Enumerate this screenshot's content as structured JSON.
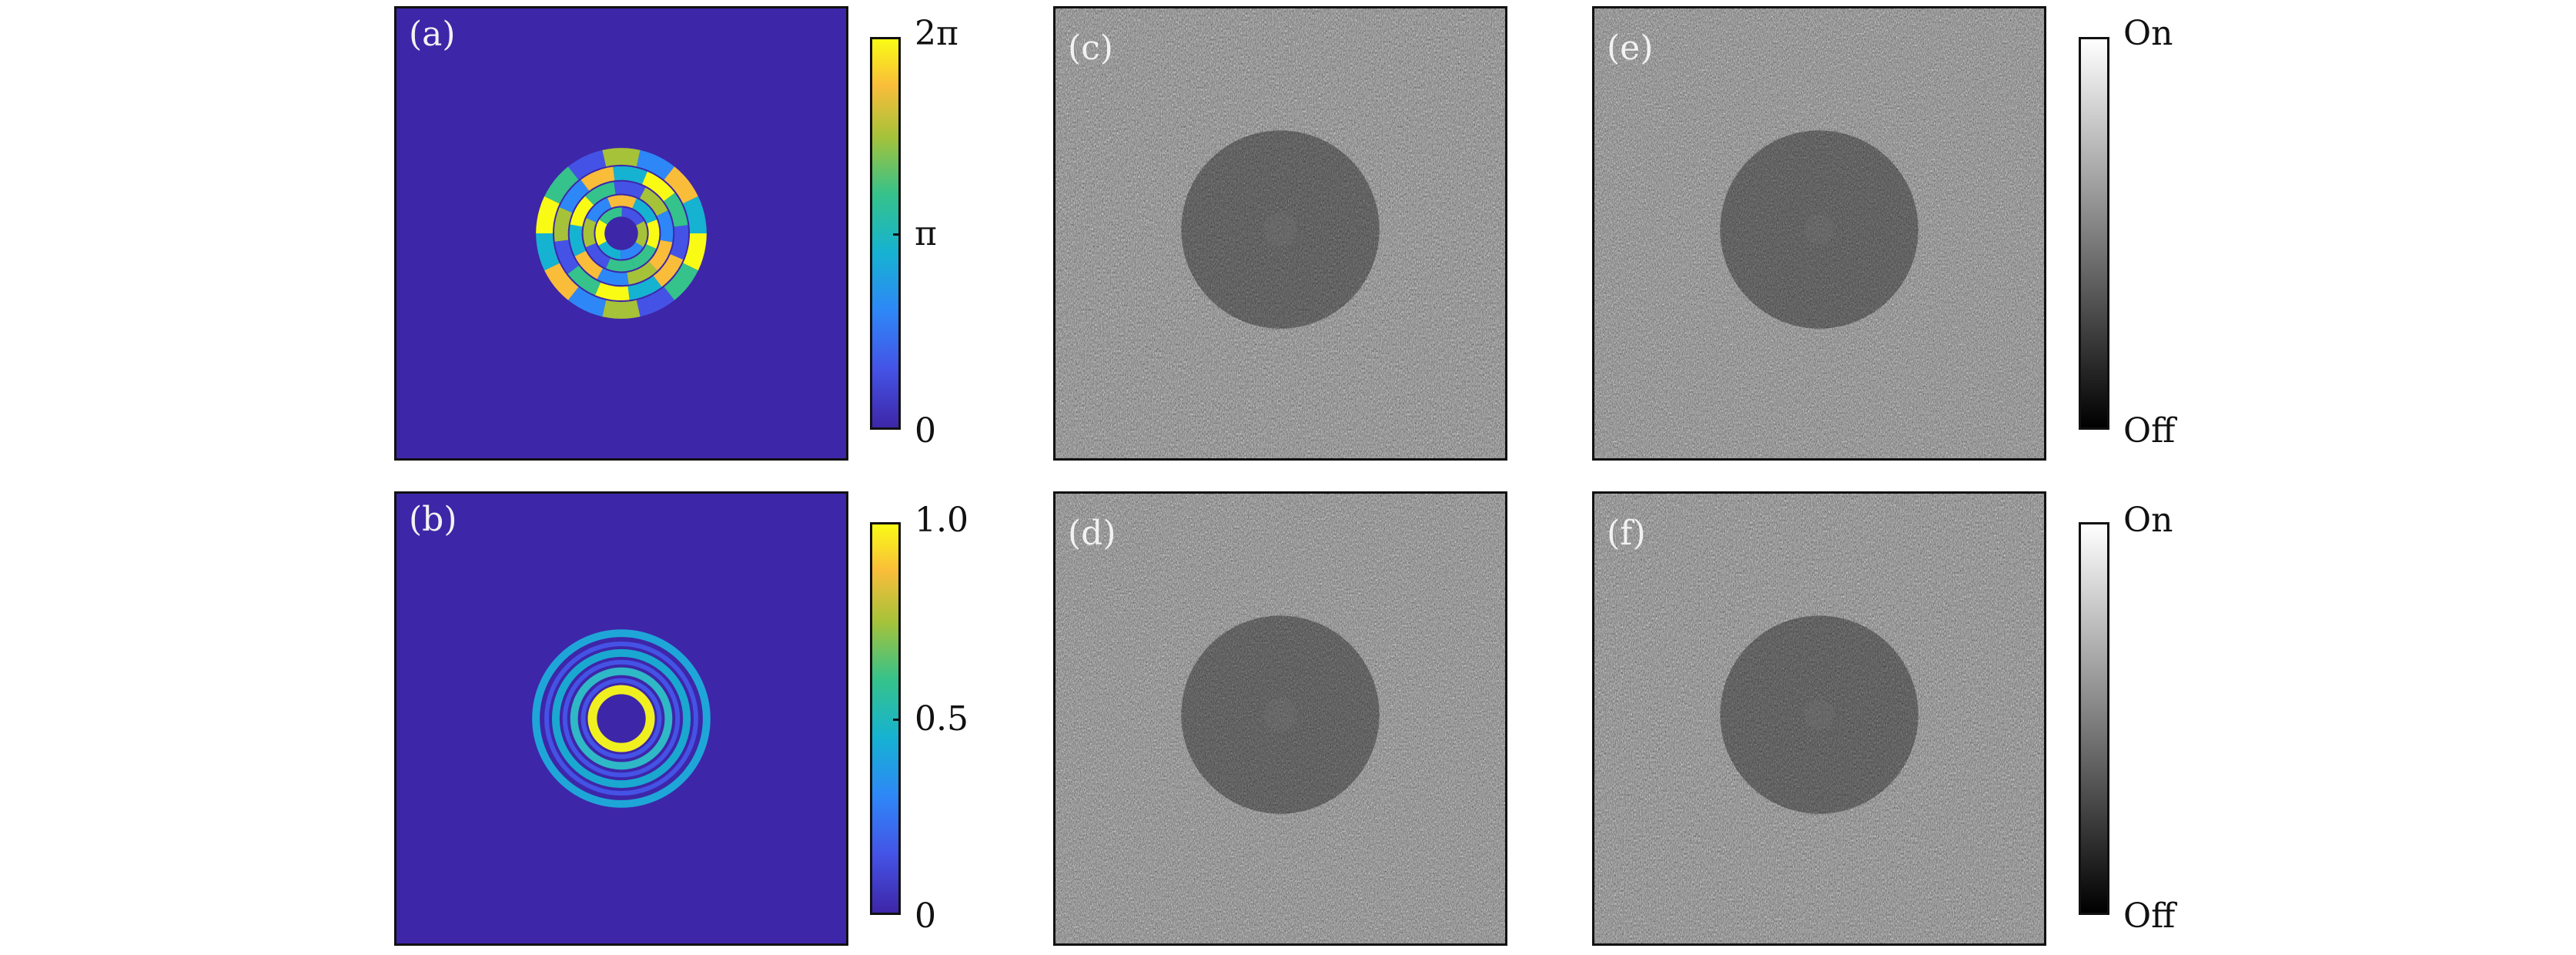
{
  "panels": {
    "a": {
      "label": "(a)"
    },
    "b": {
      "label": "(b)"
    },
    "c": {
      "label": "(c)"
    },
    "d": {
      "label": "(d)"
    },
    "e": {
      "label": "(e)"
    },
    "f": {
      "label": "(f)"
    }
  },
  "colorbars": {
    "phase": {
      "top": "2π",
      "mid": "π",
      "bottom": "0"
    },
    "amplitude": {
      "top": "1.0",
      "mid": "0.5",
      "bottom": "0"
    },
    "hologram_top": {
      "top": "On",
      "bottom": "Off"
    },
    "hologram_bottom": {
      "top": "On",
      "bottom": "Off"
    }
  },
  "colors": {
    "parula_background": "#3d26a8",
    "parula_yellow": "#f9fb0e",
    "frame": "#111111"
  }
}
